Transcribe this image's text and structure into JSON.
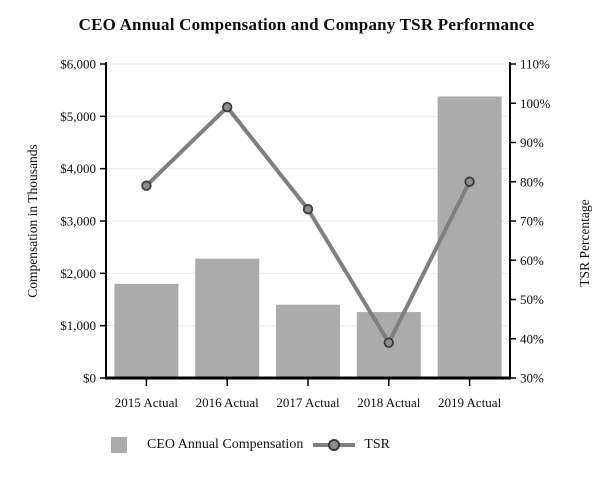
{
  "chart_data": {
    "type": "bar+line combo",
    "title": "CEO Annual Compensation and Company TSR Performance",
    "categories": [
      "2015 Actual",
      "2016 Actual",
      "2017 Actual",
      "2018 Actual",
      "2019 Actual"
    ],
    "series": [
      {
        "name": "CEO Annual Compensation",
        "type": "bar",
        "axis": "left",
        "values": [
          1800,
          2280,
          1400,
          1260,
          5380
        ]
      },
      {
        "name": "TSR",
        "type": "line",
        "axis": "right",
        "values": [
          79,
          99,
          73,
          39,
          80
        ]
      }
    ],
    "left_axis": {
      "title": "Compensation in Thousands",
      "min": 0,
      "max": 6000,
      "tick_values": [
        0,
        1000,
        2000,
        3000,
        4000,
        5000,
        6000
      ],
      "tick_labels": [
        "$0",
        "$1,000",
        "$2,000",
        "$3,000",
        "$4,000",
        "$5,000",
        "$6,000"
      ]
    },
    "right_axis": {
      "title": "TSR Percentage",
      "min": 30,
      "max": 110,
      "tick_values": [
        30,
        40,
        50,
        60,
        70,
        80,
        90,
        100,
        110
      ],
      "tick_labels": [
        "30%",
        "40%",
        "50%",
        "60%",
        "70%",
        "80%",
        "90%",
        "100%",
        "110%"
      ]
    },
    "legend": {
      "bar_label": "CEO Annual Compensation",
      "line_label": "TSR"
    },
    "grid": "horizontal gridlines on",
    "legend_position": "bottom-left",
    "colors": {
      "bar": "#ABABAB",
      "line": "#7F7F7F",
      "marker_fill": "#8C8C8C",
      "marker_stroke": "#3B3B3B",
      "grid": "#ECECEC",
      "axis": "#000000",
      "text": "#0d0d0d"
    }
  }
}
